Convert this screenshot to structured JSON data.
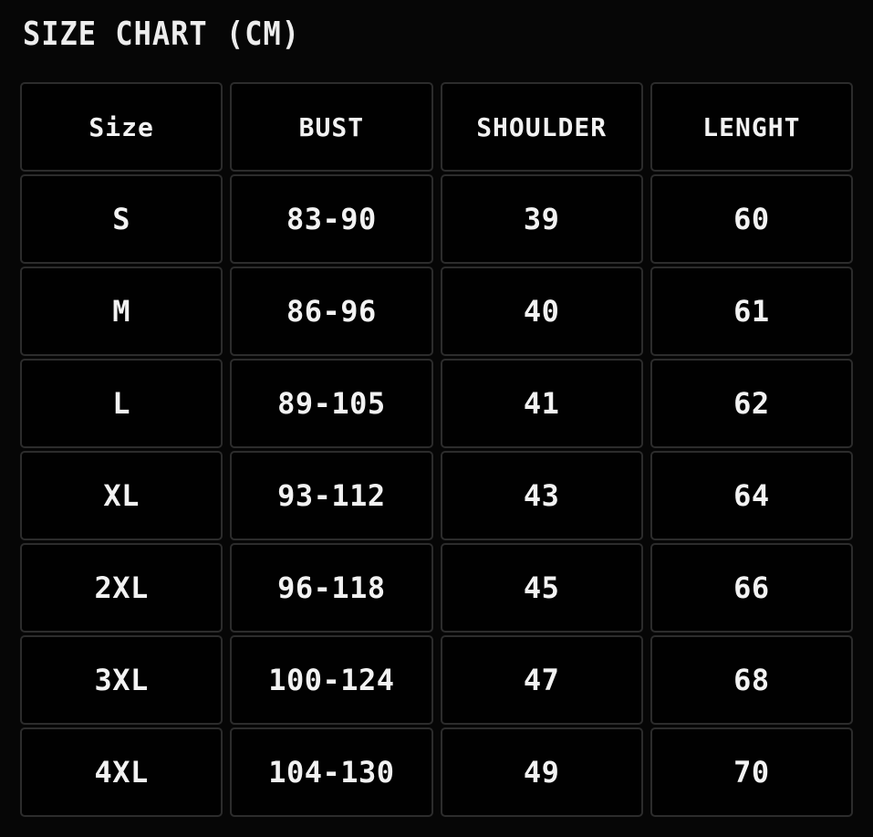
{
  "title": "SIZE CHART (CM)",
  "chart_data": {
    "type": "table",
    "title": "SIZE CHART (CM)",
    "unit": "cm",
    "columns": [
      "Size",
      "BUST",
      "SHOULDER",
      "LENGHT"
    ],
    "rows": [
      [
        "S",
        "83-90",
        "39",
        "60"
      ],
      [
        "M",
        "86-96",
        "40",
        "61"
      ],
      [
        "L",
        "89-105",
        "41",
        "62"
      ],
      [
        "XL",
        "93-112",
        "43",
        "64"
      ],
      [
        "2XL",
        "96-118",
        "45",
        "66"
      ],
      [
        "3XL",
        "100-124",
        "47",
        "68"
      ],
      [
        "4XL",
        "104-130",
        "49",
        "70"
      ]
    ]
  },
  "colors": {
    "page_background": "#060606",
    "cell_background": "#010101",
    "cell_border": "#2c2c2c",
    "text": "#f2f2f2"
  }
}
